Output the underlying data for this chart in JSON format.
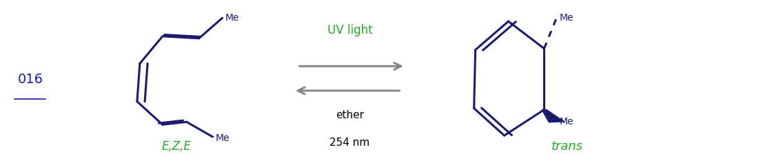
{
  "bg_color": "#ffffff",
  "label_color": "#1a1aaa",
  "green_color": "#22aa22",
  "dark_navy": "#1a1a6e",
  "gray_arrow": "#888888",
  "ref_label": "016",
  "arrow_top_label": "UV light",
  "arrow_bottom_label1": "ether",
  "arrow_bottom_label2": "254 nm",
  "left_stereo_label": "E,Z,E",
  "right_stereo_label": "trans"
}
